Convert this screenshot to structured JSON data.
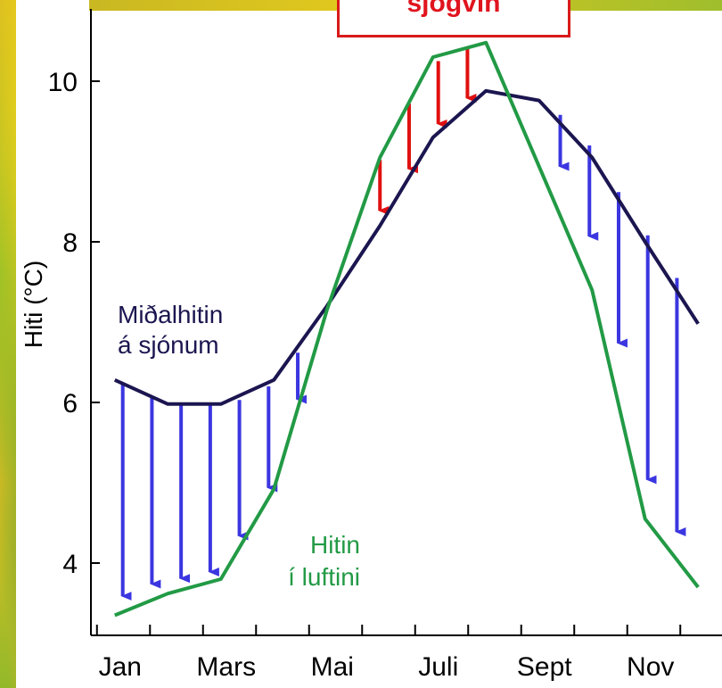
{
  "chart_data": {
    "type": "line",
    "ylabel": "Hiti (°C)",
    "ylim": [
      3.1,
      10.9
    ],
    "yticks": [
      4,
      6,
      8,
      10
    ],
    "x_tick_labels": [
      {
        "label": "Jan",
        "month": 1
      },
      {
        "label": "Mars",
        "month": 3
      },
      {
        "label": "Mai",
        "month": 5
      },
      {
        "label": "Juli",
        "month": 7
      },
      {
        "label": "Sept",
        "month": 9
      },
      {
        "label": "Nov",
        "month": 11
      }
    ],
    "xlim": [
      0.55,
      12.45
    ],
    "series": [
      {
        "name": "Miðalhitin á sjónum",
        "color": "#1b1650",
        "x": [
          1,
          2,
          3,
          4,
          5,
          6,
          7,
          8,
          9,
          10,
          11,
          12
        ],
        "y": [
          6.28,
          5.98,
          5.98,
          6.28,
          7.2,
          8.2,
          9.3,
          9.88,
          9.76,
          9.05,
          8.0,
          6.98
        ]
      },
      {
        "name": "Hitin í luftini",
        "color": "#229a45",
        "x": [
          1,
          2,
          3,
          4,
          5,
          6,
          7,
          8,
          9,
          10,
          11,
          12
        ],
        "y": [
          3.35,
          3.62,
          3.8,
          4.92,
          7.15,
          9.05,
          10.3,
          10.48,
          8.94,
          7.4,
          4.55,
          3.7
        ]
      }
    ],
    "arrows": [
      {
        "x": 1.15,
        "from": 6.25,
        "to": 3.5,
        "color": "blue"
      },
      {
        "x": 1.7,
        "from": 6.08,
        "to": 3.65,
        "color": "blue"
      },
      {
        "x": 2.25,
        "from": 5.98,
        "to": 3.72,
        "color": "blue"
      },
      {
        "x": 2.8,
        "from": 5.98,
        "to": 3.8,
        "color": "blue"
      },
      {
        "x": 3.35,
        "from": 6.03,
        "to": 4.25,
        "color": "blue"
      },
      {
        "x": 3.9,
        "from": 6.2,
        "to": 4.85,
        "color": "blue"
      },
      {
        "x": 4.45,
        "from": 6.62,
        "to": 5.95,
        "color": "blue"
      },
      {
        "x": 6.0,
        "from": 9.02,
        "to": 8.3,
        "color": "red"
      },
      {
        "x": 6.55,
        "from": 9.72,
        "to": 8.82,
        "color": "red"
      },
      {
        "x": 7.1,
        "from": 10.25,
        "to": 9.38,
        "color": "red"
      },
      {
        "x": 7.65,
        "from": 10.42,
        "to": 9.7,
        "color": "red"
      },
      {
        "x": 9.4,
        "from": 9.58,
        "to": 8.85,
        "color": "blue"
      },
      {
        "x": 9.95,
        "from": 9.2,
        "to": 7.98,
        "color": "blue"
      },
      {
        "x": 10.5,
        "from": 8.62,
        "to": 6.65,
        "color": "blue"
      },
      {
        "x": 11.05,
        "from": 8.08,
        "to": 4.95,
        "color": "blue"
      },
      {
        "x": 11.6,
        "from": 7.55,
        "to": 4.3,
        "color": "blue"
      }
    ],
    "annotations": [
      {
        "lines": [
          "Miðalhitin",
          "á sjónum"
        ],
        "color": "#1b1650"
      },
      {
        "lines": [
          "Hitin",
          "í luftini"
        ],
        "color": "#229a45"
      }
    ],
    "callout": "sjógvin",
    "grid": false,
    "legend": "none"
  }
}
